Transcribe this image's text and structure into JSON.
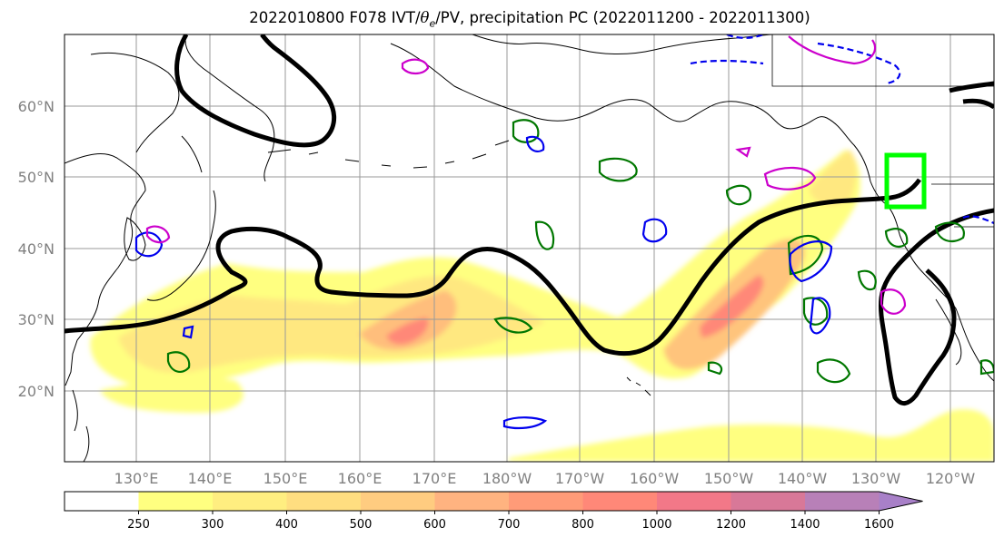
{
  "title": {
    "prefix": "2022010800 F078 IVT/",
    "theta": "θ",
    "subscript": "e",
    "suffix": "/PV, precipitation PC (2022011200 - 2022011300)"
  },
  "map": {
    "projection": "PlateCarree",
    "lon_range_east": [
      120,
      250
    ],
    "lat_range": [
      10,
      70
    ],
    "latitude_labels": [
      "20°N",
      "30°N",
      "40°N",
      "50°N",
      "60°N"
    ],
    "longitude_labels": [
      "130°E",
      "140°E",
      "150°E",
      "160°E",
      "170°E",
      "180°W",
      "170°W",
      "160°W",
      "150°W",
      "140°W",
      "130°W",
      "120°W"
    ],
    "gridlines": true,
    "target_box_color": "#00ff00"
  },
  "colorbar": {
    "tick_labels": [
      "250",
      "300",
      "400",
      "500",
      "600",
      "700",
      "800",
      "1000",
      "1200",
      "1400",
      "1600"
    ],
    "colors": [
      "#ffffff",
      "#ffff80",
      "#ffee80",
      "#ffde80",
      "#ffcc80",
      "#ffb380",
      "#ff9b78",
      "#ff8878",
      "#f27888",
      "#d87898",
      "#b880b8",
      "#a880c8"
    ],
    "extend": "max"
  },
  "legend_colors": {
    "pv_contour": "#000000",
    "precip_positive": "#007700",
    "theta_e_positive": "#0000ee",
    "theta_e_negative": "#0000ee",
    "magenta_contour": "#cc00cc"
  }
}
